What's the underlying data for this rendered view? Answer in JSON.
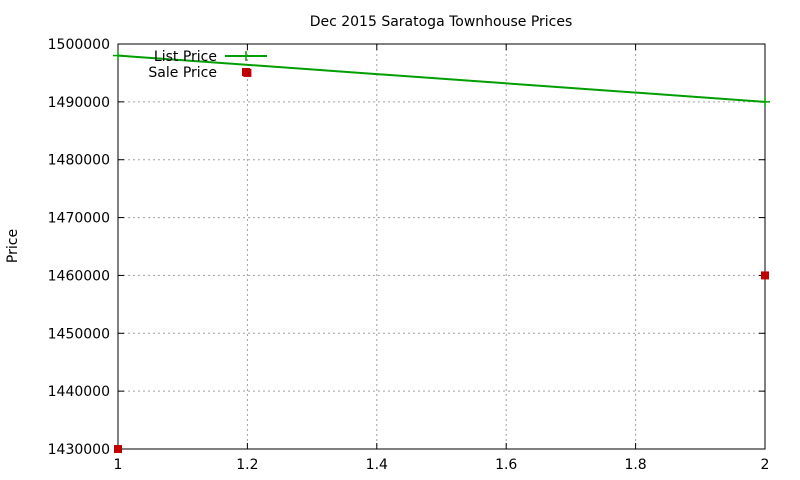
{
  "chart_data": {
    "type": "line",
    "title": "Dec 2015 Saratoga Townhouse Prices",
    "xlabel": "",
    "ylabel": "Price",
    "xlim": [
      1,
      2
    ],
    "ylim": [
      1430000,
      1500000
    ],
    "xticks": [
      "1",
      "1.2",
      "1.4",
      "1.6",
      "1.8",
      "2"
    ],
    "yticks": [
      "1430000",
      "1440000",
      "1450000",
      "1460000",
      "1470000",
      "1480000",
      "1490000",
      "1500000"
    ],
    "grid": true,
    "legend_position": "top-left",
    "series": [
      {
        "name": "List Price",
        "style": "line+cross",
        "color": "#009e00",
        "points": [
          [
            1,
            1498000
          ],
          [
            2,
            1490000
          ]
        ]
      },
      {
        "name": "Sale Price",
        "style": "square",
        "color": "#c00000",
        "points": [
          [
            1,
            1430000
          ],
          [
            1.2,
            1495000
          ],
          [
            2,
            1460000
          ]
        ]
      }
    ]
  }
}
